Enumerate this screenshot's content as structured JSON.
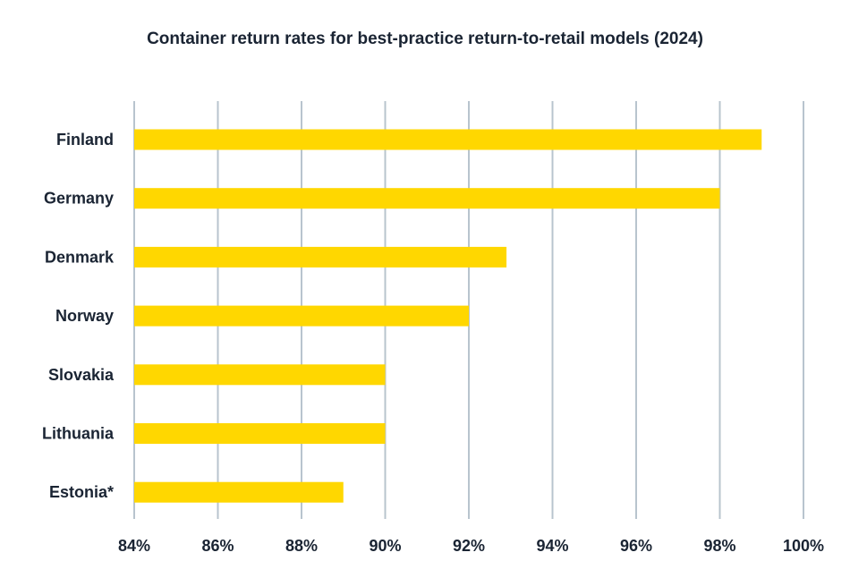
{
  "chart_data": {
    "type": "bar",
    "orientation": "horizontal",
    "title": "Container return rates for best-practice return-to-retail models (2024)",
    "xlabel": "",
    "ylabel": "",
    "categories": [
      "Finland",
      "Germany",
      "Denmark",
      "Norway",
      "Slovakia",
      "Lithuania",
      "Estonia*"
    ],
    "values": [
      99,
      98,
      92.9,
      92,
      90,
      90,
      89
    ],
    "xlim": [
      84,
      100
    ],
    "xticks": [
      84,
      86,
      88,
      90,
      92,
      94,
      96,
      98,
      100
    ],
    "xtick_labels": [
      "84%",
      "86%",
      "88%",
      "90%",
      "92%",
      "94%",
      "96%",
      "98%",
      "100%"
    ],
    "grid": "vertical",
    "legend": "none",
    "colors": {
      "bar": "#FFD700",
      "grid": "#B8C4CE",
      "text": "#1a2433"
    }
  }
}
